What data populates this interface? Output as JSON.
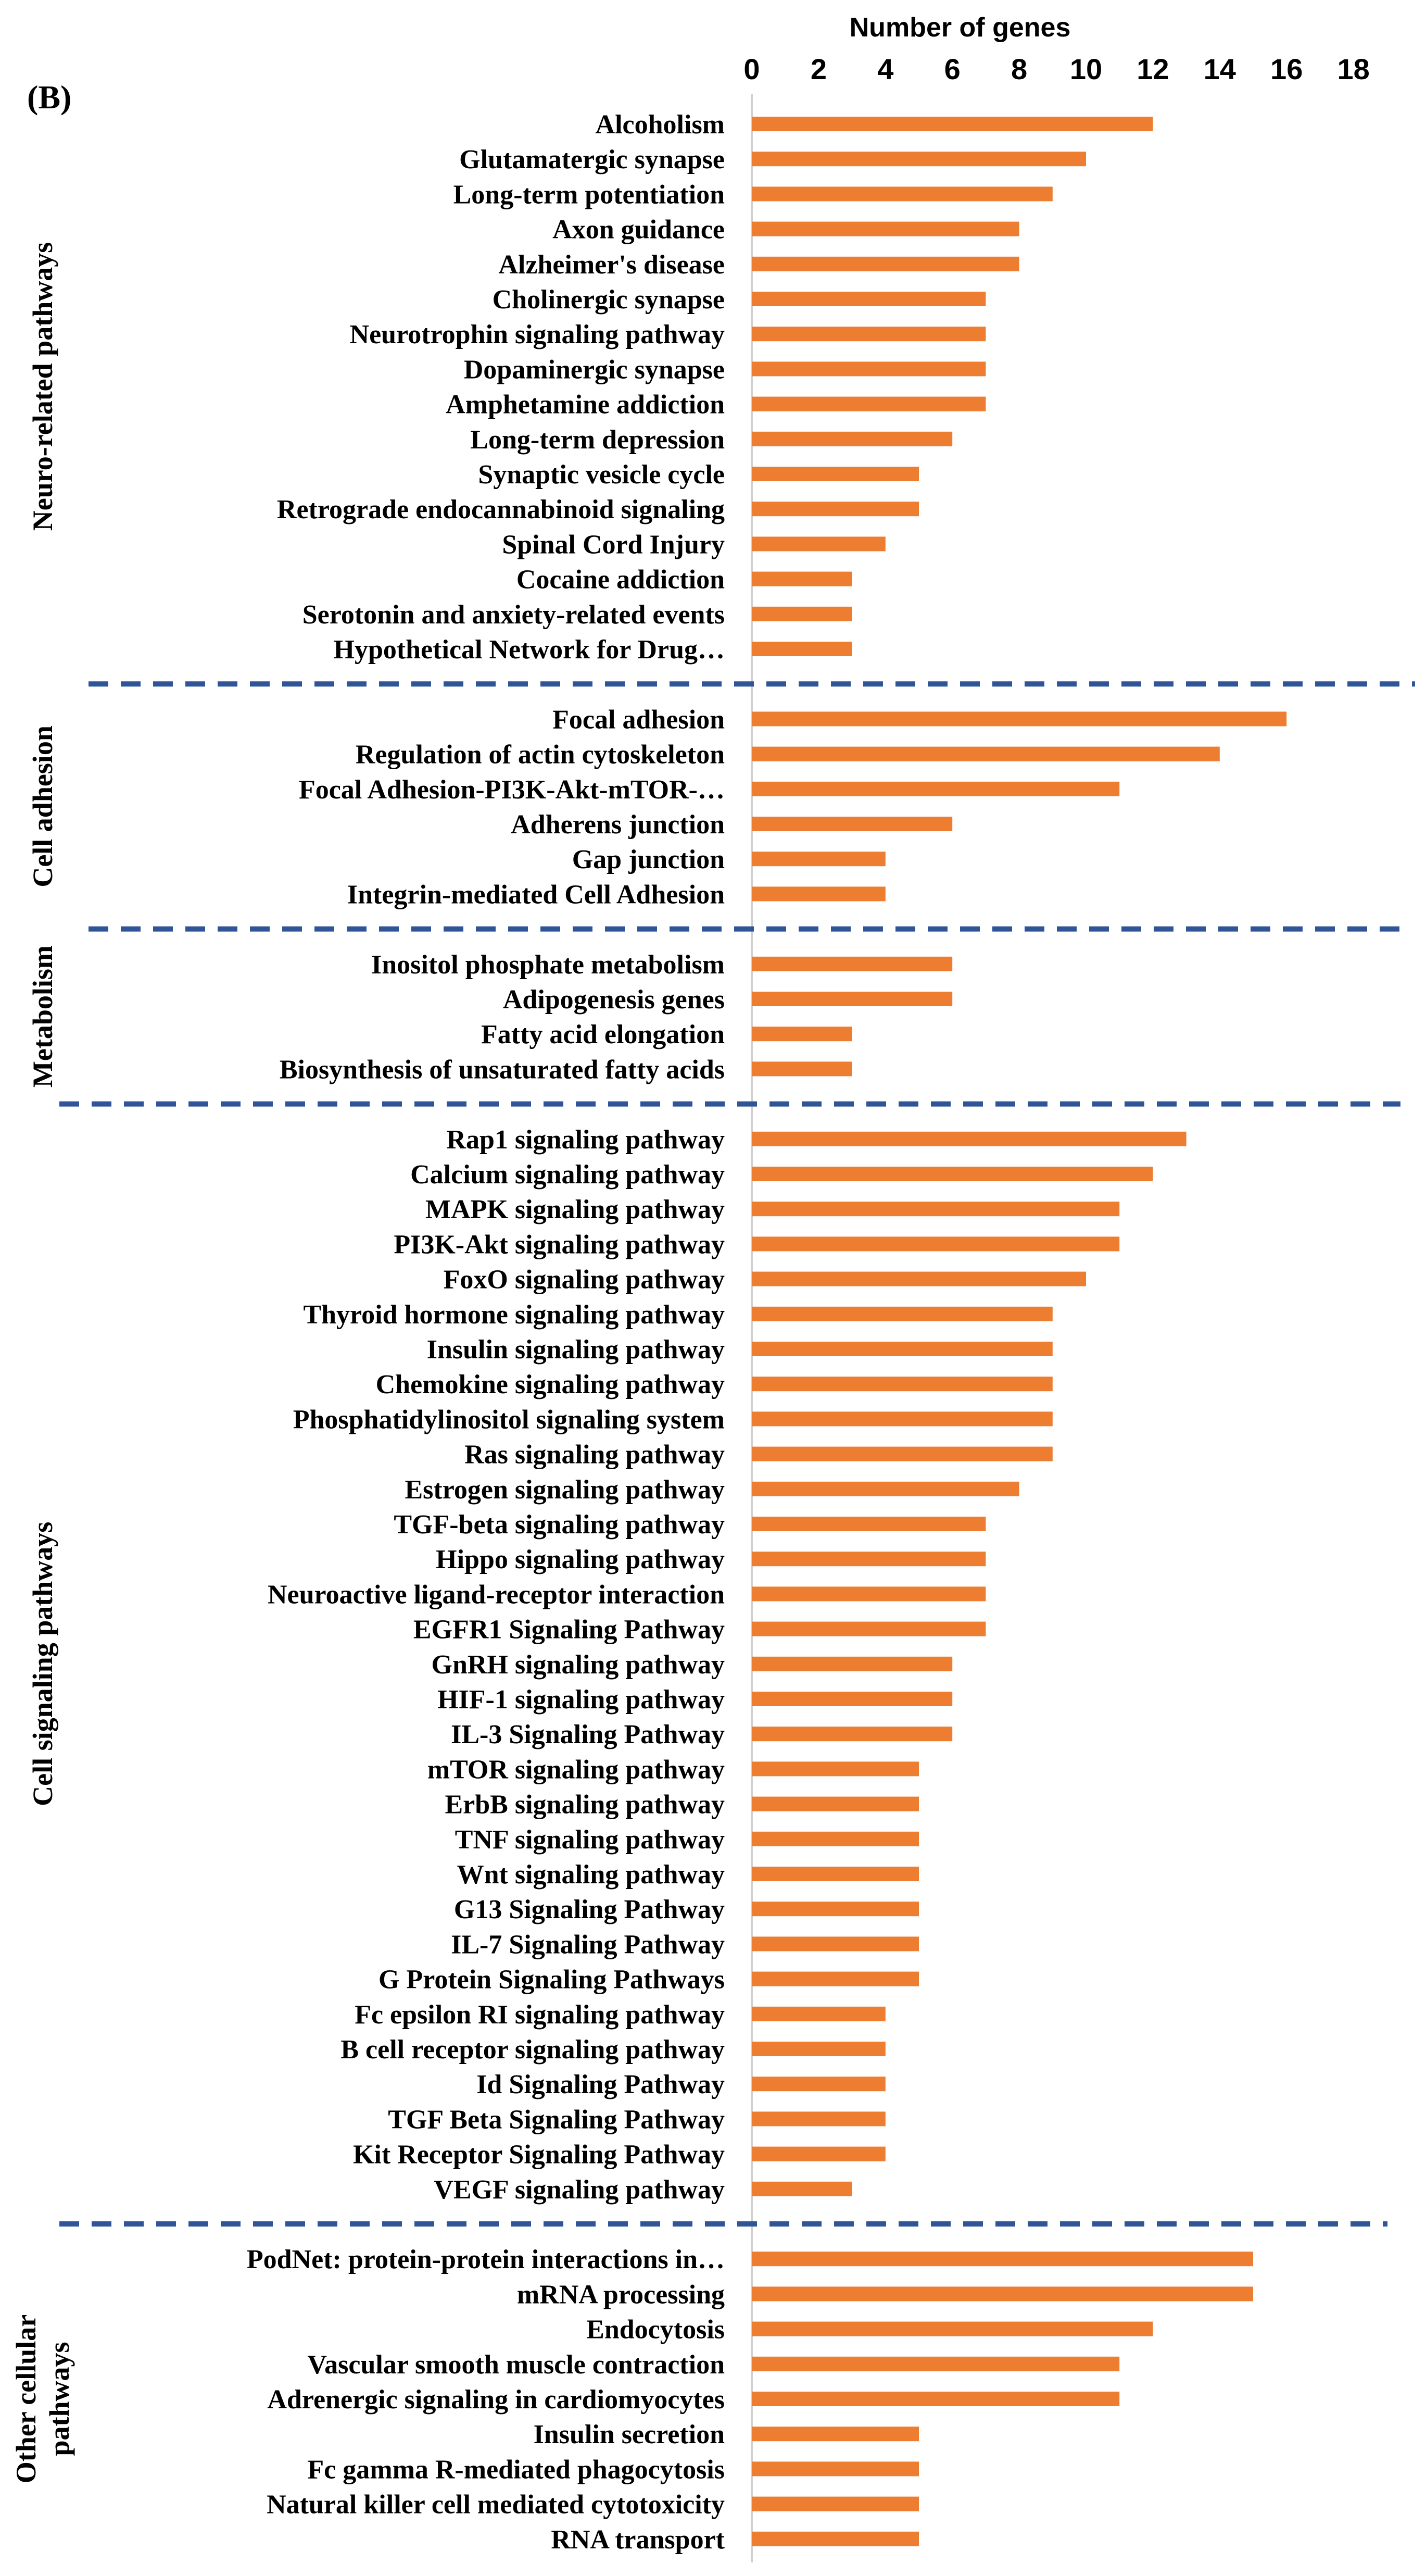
{
  "panel_label": "(B)",
  "chart_data": {
    "type": "bar",
    "orientation": "horizontal",
    "xlabel": "Number of genes",
    "xlim": [
      0,
      18
    ],
    "xticks": [
      0,
      2,
      4,
      6,
      8,
      10,
      12,
      14,
      16,
      18
    ],
    "bar_color": "#ED7D31",
    "separator_color": "#2F5597",
    "axis_color": "#D0D0D0",
    "groups": [
      {
        "name": "Neuro-related pathways",
        "label_lines": [
          "Neuro-related pathways"
        ],
        "categories": [
          "Alcoholism",
          "Glutamatergic synapse",
          "Long-term potentiation",
          "Axon guidance",
          "Alzheimer's disease",
          "Cholinergic synapse",
          "Neurotrophin signaling pathway",
          "Dopaminergic synapse",
          "Amphetamine addiction",
          "Long-term depression",
          "Synaptic vesicle cycle",
          "Retrograde endocannabinoid signaling",
          "Spinal Cord Injury",
          "Cocaine addiction",
          "Serotonin and anxiety-related events",
          "Hypothetical Network for Drug…"
        ],
        "values": [
          12,
          10,
          9,
          8,
          8,
          7,
          7,
          7,
          7,
          6,
          5,
          5,
          4,
          3,
          3,
          3
        ]
      },
      {
        "name": "Cell adhesion",
        "label_lines": [
          "Cell adhesion"
        ],
        "categories": [
          "Focal adhesion",
          "Regulation of actin cytoskeleton",
          "Focal Adhesion-PI3K-Akt-mTOR-…",
          "Adherens junction",
          "Gap junction",
          "Integrin-mediated Cell Adhesion"
        ],
        "values": [
          16,
          14,
          11,
          6,
          4,
          4
        ]
      },
      {
        "name": "Metabolism",
        "label_lines": [
          "Metabolism"
        ],
        "categories": [
          "Inositol phosphate metabolism",
          "Adipogenesis genes",
          "Fatty acid elongation",
          "Biosynthesis of unsaturated fatty acids"
        ],
        "values": [
          6,
          6,
          3,
          3
        ]
      },
      {
        "name": "Cell signaling pathways",
        "label_lines": [
          "Cell signaling pathways"
        ],
        "categories": [
          "Rap1 signaling pathway",
          "Calcium signaling pathway",
          "MAPK signaling pathway",
          "PI3K-Akt signaling pathway",
          "FoxO signaling pathway",
          "Thyroid hormone signaling pathway",
          "Insulin signaling pathway",
          "Chemokine signaling pathway",
          "Phosphatidylinositol signaling system",
          "Ras signaling pathway",
          "Estrogen signaling pathway",
          "TGF-beta signaling pathway",
          "Hippo signaling pathway",
          "Neuroactive ligand-receptor interaction",
          "EGFR1 Signaling Pathway",
          "GnRH signaling pathway",
          "HIF-1 signaling pathway",
          "IL-3 Signaling Pathway",
          "mTOR signaling pathway",
          "ErbB signaling pathway",
          "TNF signaling pathway",
          "Wnt signaling pathway",
          "G13 Signaling Pathway",
          "IL-7 Signaling Pathway",
          "G Protein Signaling Pathways",
          "Fc epsilon RI signaling pathway",
          "B cell receptor signaling pathway",
          "Id Signaling Pathway",
          "TGF Beta Signaling Pathway",
          "Kit Receptor Signaling Pathway",
          "VEGF signaling pathway"
        ],
        "values": [
          13,
          12,
          11,
          11,
          10,
          9,
          9,
          9,
          9,
          9,
          8,
          7,
          7,
          7,
          7,
          6,
          6,
          6,
          5,
          5,
          5,
          5,
          5,
          5,
          5,
          4,
          4,
          4,
          4,
          4,
          3
        ]
      },
      {
        "name": "Other cellular pathways",
        "label_lines": [
          "Other cellular",
          "pathways"
        ],
        "categories": [
          "PodNet: protein-protein interactions in…",
          "mRNA processing",
          "Endocytosis",
          "Vascular smooth muscle contraction",
          "Adrenergic signaling in cardiomyocytes",
          "Insulin secretion",
          "Fc gamma R-mediated phagocytosis",
          "Natural killer cell mediated cytotoxicity",
          "RNA transport"
        ],
        "values": [
          15,
          15,
          12,
          11,
          11,
          5,
          5,
          5,
          5
        ]
      }
    ]
  }
}
